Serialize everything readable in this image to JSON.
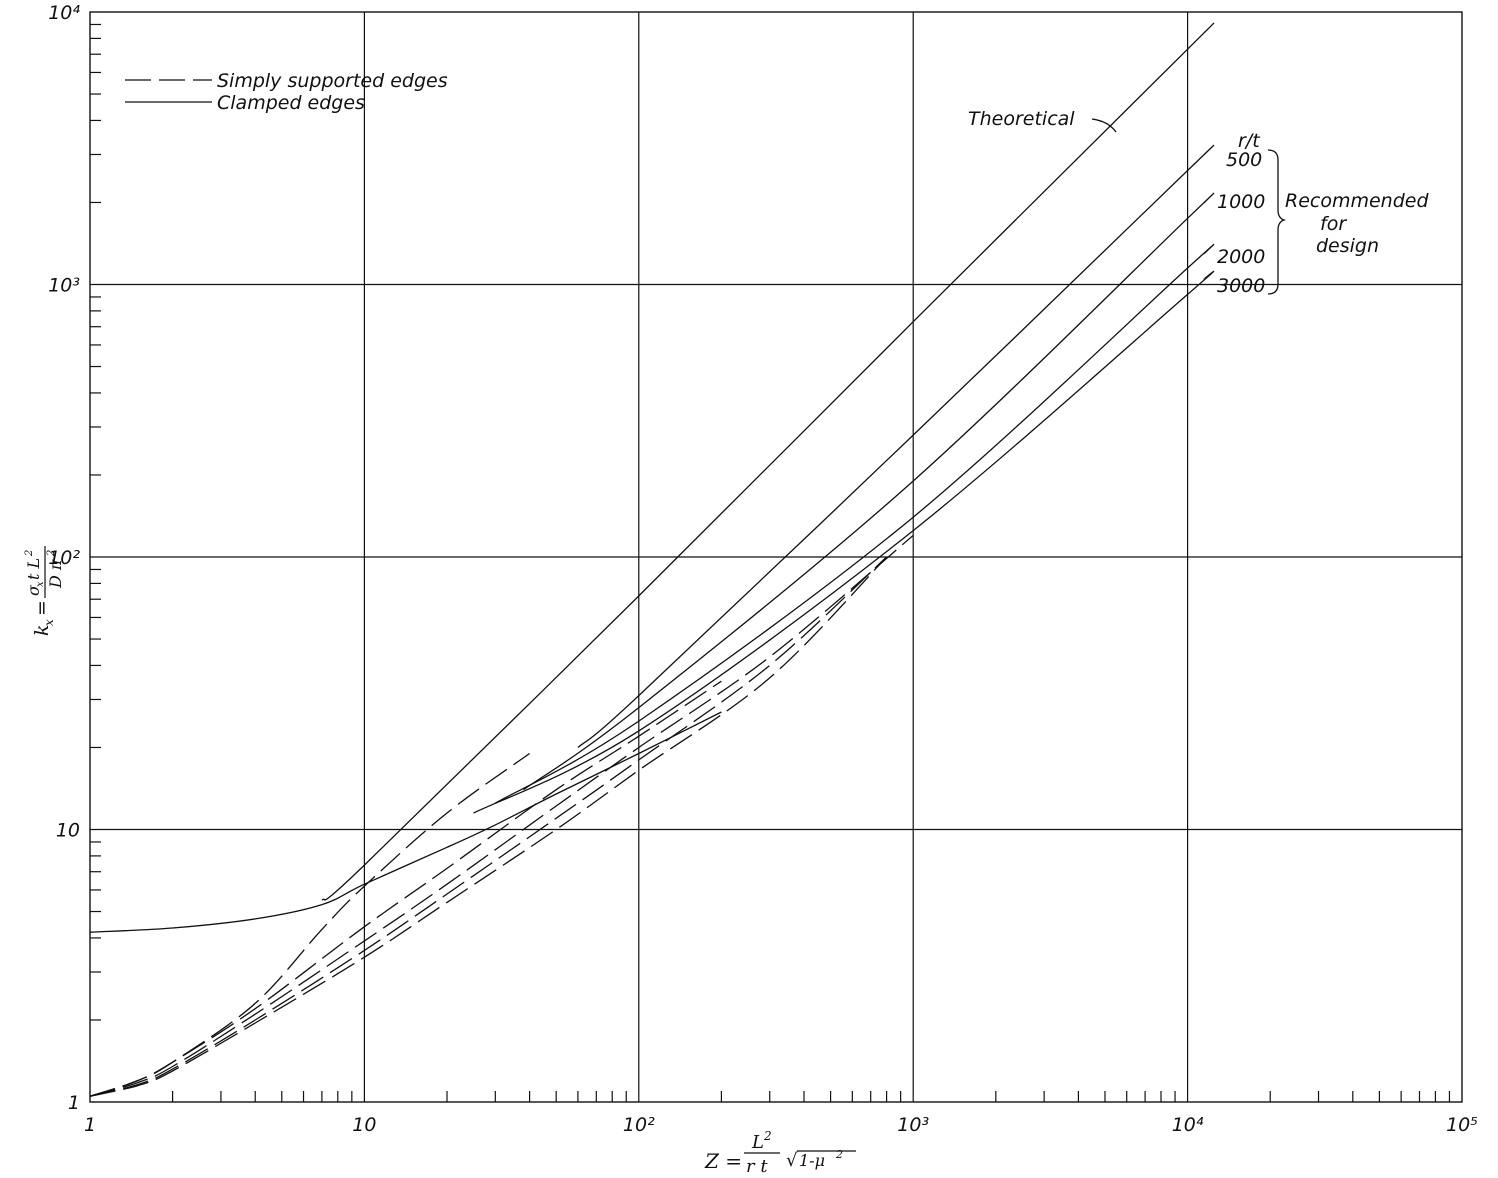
{
  "chart_data": {
    "type": "line",
    "x_scale": "log",
    "y_scale": "log",
    "xlim": [
      1,
      100000
    ],
    "ylim": [
      1,
      10000
    ],
    "grid": true,
    "x_tick_labels": [
      "1",
      "10",
      "10²",
      "10³",
      "10⁴",
      "10⁵"
    ],
    "y_tick_labels": [
      "1",
      "10",
      "10²",
      "10³",
      "10⁴"
    ],
    "xlabel": "Z = (L²/rt)√(1-μ²)",
    "ylabel": "kx = σx t L² / Dπ²",
    "legend": {
      "position": "top-left",
      "entries": [
        {
          "label": "Simply supported edges",
          "style": "dashed"
        },
        {
          "label": "Clamped edges",
          "style": "solid"
        }
      ]
    },
    "annotations": {
      "theoretical": "Theoretical",
      "rt_header": "r/t",
      "rt_values": [
        "500",
        "1000",
        "2000",
        "3000"
      ],
      "recommended": [
        "Recommended",
        "for",
        "design"
      ]
    },
    "series": [
      {
        "name": "Theoretical",
        "style": "solid",
        "x": [
          7,
          10,
          100,
          1000,
          10000,
          11500
        ],
        "y": [
          5.5,
          7.4,
          72,
          730,
          7300,
          8400
        ]
      },
      {
        "name": "500",
        "style": "solid",
        "x": [
          60,
          100,
          1000,
          10000,
          11500
        ],
        "y": [
          20,
          31,
          280,
          2620,
          3000
        ]
      },
      {
        "name": "1000",
        "style": "solid",
        "x": [
          38,
          100,
          1000,
          10000,
          11500
        ],
        "y": [
          14,
          28,
          190,
          1750,
          2000
        ]
      },
      {
        "name": "2000",
        "style": "solid",
        "x": [
          30,
          100,
          1000,
          10000,
          11500
        ],
        "y": [
          12.5,
          25,
          140,
          1150,
          1300
        ]
      },
      {
        "name": "3000",
        "style": "solid",
        "x": [
          25,
          100,
          1000,
          10000,
          11500
        ],
        "y": [
          11.5,
          23,
          125,
          920,
          1050
        ]
      },
      {
        "name": "Clamped",
        "style": "solid",
        "x": [
          1,
          2,
          4,
          7,
          10,
          20,
          30,
          50,
          100,
          200
        ],
        "y": [
          4.2,
          4.35,
          4.7,
          5.3,
          6.3,
          8.6,
          10.4,
          13.5,
          19,
          27
        ]
      },
      {
        "name": "Simply supported",
        "style": "dashed",
        "x": [
          1,
          1.5,
          2,
          4,
          7,
          10,
          20,
          40
        ],
        "y": [
          1.05,
          1.2,
          1.4,
          2.3,
          4.3,
          6.2,
          11.5,
          19
        ]
      },
      {
        "name": "Simply supported",
        "style": "dashed",
        "x": [
          1,
          1.5,
          2,
          4,
          10,
          20,
          50,
          100,
          200
        ],
        "y": [
          1.05,
          1.2,
          1.4,
          2.2,
          4.4,
          7.2,
          14,
          22,
          35
        ]
      },
      {
        "name": "Simply supported",
        "style": "dashed",
        "x": [
          1,
          1.5,
          2,
          4,
          10,
          20,
          50,
          100,
          300,
          1000
        ],
        "y": [
          1.05,
          1.18,
          1.35,
          2.1,
          3.9,
          6.3,
          12.2,
          20,
          43,
          120
        ]
      },
      {
        "name": "Simply supported",
        "style": "dashed",
        "x": [
          1,
          1.5,
          2,
          4,
          10,
          20,
          50,
          100,
          300,
          800
        ],
        "y": [
          1.05,
          1.16,
          1.32,
          2.0,
          3.6,
          5.8,
          11,
          18,
          40,
          100
        ]
      },
      {
        "name": "Simply supported",
        "style": "dashed",
        "x": [
          1,
          1.5,
          2,
          4,
          10,
          20,
          50,
          100,
          300,
          800
        ],
        "y": [
          1.05,
          1.15,
          1.3,
          1.95,
          3.4,
          5.4,
          10,
          16.5,
          36,
          100
        ]
      }
    ]
  }
}
